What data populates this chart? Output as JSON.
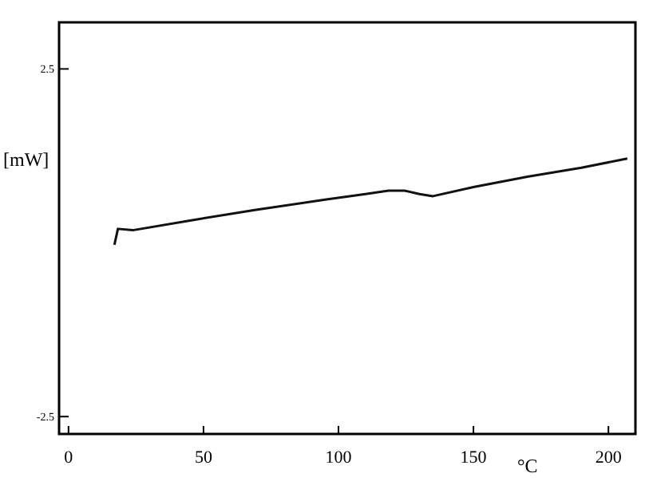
{
  "chart_data": {
    "type": "line",
    "xlabel": "°C",
    "ylabel": "[mW]",
    "x": [
      17,
      18.3,
      23.8,
      45,
      69,
      95,
      110,
      118.5,
      124.4,
      130,
      135,
      150,
      170,
      190,
      207
    ],
    "series": [
      {
        "color": "#111111",
        "values": [
          -0.03,
          0.2,
          0.18,
          0.32,
          0.47,
          0.62,
          0.7,
          0.75,
          0.75,
          0.7,
          0.67,
          0.8,
          0.95,
          1.08,
          1.21
        ]
      }
    ],
    "xlim": [
      -3.5,
      210
    ],
    "xticks": [
      0,
      50,
      100,
      150,
      200
    ],
    "ylim": [
      -2.75,
      3.17
    ],
    "yticks": [
      -2.5,
      2.5
    ],
    "line_style": "solid"
  }
}
